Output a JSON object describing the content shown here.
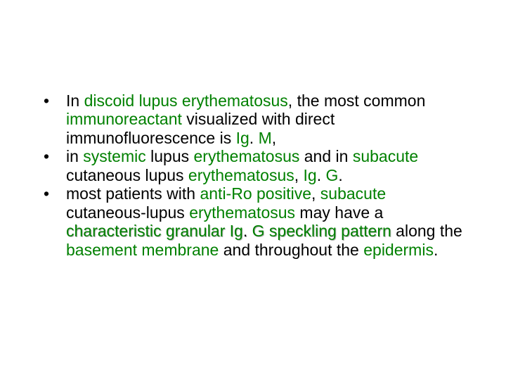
{
  "colors": {
    "background": "#ffffff",
    "green": "#008000",
    "black": "#000000",
    "shadow": "#aaaaaa"
  },
  "typography": {
    "font_family": "Arial",
    "font_size_pt": 18,
    "line_height": 1.15
  },
  "bullets": [
    {
      "segments": [
        {
          "text": "In ",
          "color": "#000000"
        },
        {
          "text": "discoid lupus erythematosus",
          "color": "#008000"
        },
        {
          "text": ", the most common ",
          "color": "#000000"
        },
        {
          "text": "immunoreactant",
          "color": "#008000"
        },
        {
          "text": " visualized with direct immunofluorescence is ",
          "color": "#000000"
        },
        {
          "text": "Ig",
          "color": "#008000"
        },
        {
          "text": ". ",
          "color": "#000000"
        },
        {
          "text": "M",
          "color": "#008000"
        },
        {
          "text": ",",
          "color": "#000000"
        }
      ]
    },
    {
      "leading_space": true,
      "segments": [
        {
          "text": "in ",
          "color": "#000000"
        },
        {
          "text": "systemic",
          "color": "#008000"
        },
        {
          "text": " lupus ",
          "color": "#000000"
        },
        {
          "text": "erythematosus",
          "color": "#008000"
        },
        {
          "text": " and in ",
          "color": "#000000"
        },
        {
          "text": "subacute",
          "color": "#008000"
        },
        {
          "text": " cutaneous lupus ",
          "color": "#000000"
        },
        {
          "text": "erythematosus",
          "color": "#008000"
        },
        {
          "text": ", ",
          "color": "#000000"
        },
        {
          "text": "Ig",
          "color": "#008000"
        },
        {
          "text": ". ",
          "color": "#000000"
        },
        {
          "text": "G",
          "color": "#008000"
        },
        {
          "text": ".",
          "color": "#000000"
        }
      ]
    },
    {
      "leading_space": true,
      "segments": [
        {
          "text": "most patients with ",
          "color": "#000000"
        },
        {
          "text": "anti-Ro positive",
          "color": "#008000"
        },
        {
          "text": ", ",
          "color": "#000000"
        },
        {
          "text": "subacute",
          "color": "#008000"
        },
        {
          "text": " cutaneous-lupus ",
          "color": "#000000"
        },
        {
          "text": "erythematosus",
          "color": "#008000"
        },
        {
          "text": " may have a ",
          "color": "#000000"
        },
        {
          "text": "characteristic granular ",
          "color": "#008000",
          "shadow": true
        },
        {
          "text": "Ig",
          "color": "#008000",
          "shadow": true
        },
        {
          "text": ". ",
          "color": "#000000",
          "shadow": true
        },
        {
          "text": "G speckling pattern",
          "color": "#008000",
          "shadow": true
        },
        {
          "text": " along the ",
          "color": "#000000"
        },
        {
          "text": "basement membrane",
          "color": "#008000"
        },
        {
          "text": " and throughout the ",
          "color": "#000000"
        },
        {
          "text": "epidermis",
          "color": "#008000"
        },
        {
          "text": ".",
          "color": "#000000"
        }
      ]
    }
  ]
}
